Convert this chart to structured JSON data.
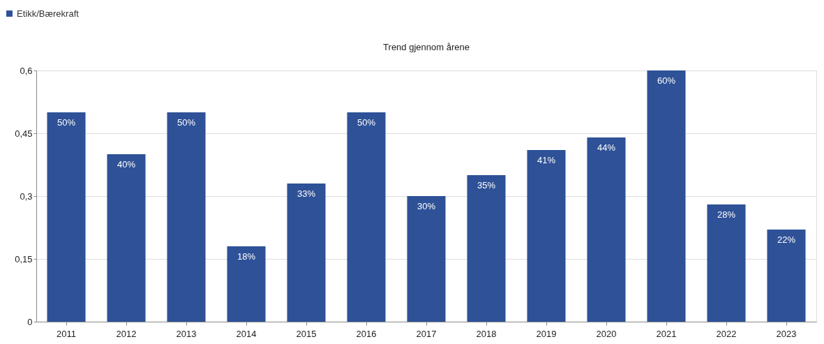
{
  "chart_data": {
    "type": "bar",
    "title": "Trend gjennom årene",
    "categories": [
      "2011",
      "2012",
      "2013",
      "2014",
      "2015",
      "2016",
      "2017",
      "2018",
      "2019",
      "2020",
      "2021",
      "2022",
      "2023"
    ],
    "series": [
      {
        "name": "Etikk/Bærekraft",
        "color": "#2e5197",
        "values": [
          0.5,
          0.4,
          0.5,
          0.18,
          0.33,
          0.5,
          0.3,
          0.35,
          0.41,
          0.44,
          0.6,
          0.28,
          0.22
        ],
        "value_labels": [
          "50%",
          "40%",
          "50%",
          "18%",
          "33%",
          "50%",
          "30%",
          "35%",
          "41%",
          "44%",
          "60%",
          "28%",
          "22%"
        ]
      }
    ],
    "ylim": [
      0,
      0.6
    ],
    "yticks": [
      {
        "value": 0,
        "label": "0"
      },
      {
        "value": 0.15,
        "label": "0,15"
      },
      {
        "value": 0.3,
        "label": "0,3"
      },
      {
        "value": 0.45,
        "label": "0,45"
      },
      {
        "value": 0.6,
        "label": "0,6"
      }
    ],
    "grid": "y",
    "legend": "top left"
  }
}
